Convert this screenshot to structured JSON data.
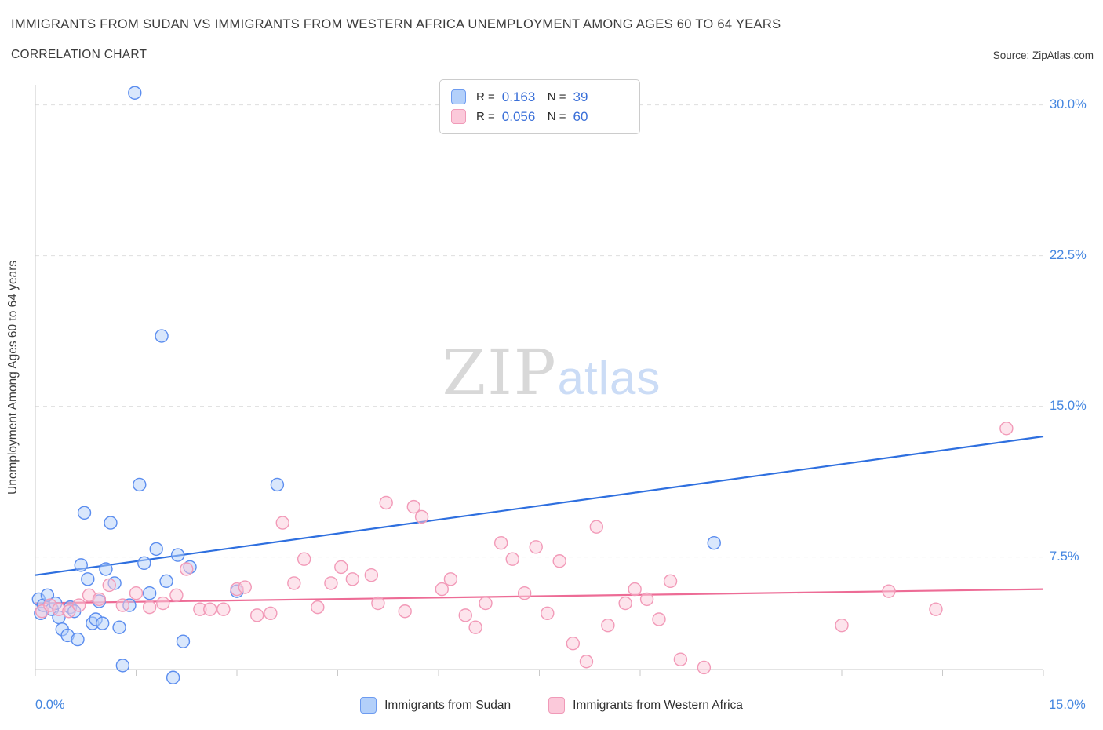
{
  "header": {
    "title": "IMMIGRANTS FROM SUDAN VS IMMIGRANTS FROM WESTERN AFRICA UNEMPLOYMENT AMONG AGES 60 TO 64 YEARS",
    "subtitle": "CORRELATION CHART",
    "source": "Source: ZipAtlas.com"
  },
  "legend_box": {
    "r_label": "R =",
    "n_label": "N ="
  },
  "watermark": {
    "zip": "ZIP",
    "atlas": "atlas"
  },
  "chart_data": {
    "type": "scatter",
    "title": "IMMIGRANTS FROM SUDAN VS IMMIGRANTS FROM WESTERN AFRICA UNEMPLOYMENT AMONG AGES 60 TO 64 YEARS",
    "subtitle": "CORRELATION CHART",
    "ylabel": "Unemployment Among Ages 60 to 64 years",
    "xlabel": "",
    "xlim": [
      0,
      15
    ],
    "ylim": [
      1.9,
      31.0
    ],
    "grid": "horizontal-dashed",
    "legend_position": "bottom-center",
    "x_ticks": [
      {
        "value": 0,
        "label": "0.0%"
      },
      {
        "value": 15,
        "label": "15.0%"
      }
    ],
    "y_ticks": [
      {
        "value": 7.5,
        "label": "7.5%"
      },
      {
        "value": 15,
        "label": "15.0%"
      },
      {
        "value": 22.5,
        "label": "22.5%"
      },
      {
        "value": 30,
        "label": "30.0%"
      }
    ],
    "series": [
      {
        "name": "Immigrants from Sudan",
        "R": "0.163",
        "N": "39",
        "color": "#5b8def",
        "line_color": "#2e6fdf",
        "fill": "#b3d0fa",
        "trend": {
          "x1": 0,
          "y1": 6.6,
          "x2": 15,
          "y2": 13.5
        },
        "points": [
          [
            0.05,
            5.4
          ],
          [
            0.08,
            4.7
          ],
          [
            0.12,
            5.1
          ],
          [
            0.18,
            5.6
          ],
          [
            0.25,
            4.9
          ],
          [
            0.3,
            5.2
          ],
          [
            0.35,
            4.5
          ],
          [
            0.4,
            3.9
          ],
          [
            0.48,
            3.6
          ],
          [
            0.52,
            5.0
          ],
          [
            0.58,
            4.8
          ],
          [
            0.63,
            3.4
          ],
          [
            0.68,
            7.1
          ],
          [
            0.73,
            9.7
          ],
          [
            0.78,
            6.4
          ],
          [
            0.85,
            4.2
          ],
          [
            0.9,
            4.4
          ],
          [
            0.95,
            5.3
          ],
          [
            1.0,
            4.2
          ],
          [
            1.05,
            6.9
          ],
          [
            1.12,
            9.2
          ],
          [
            1.18,
            6.2
          ],
          [
            1.25,
            4.0
          ],
          [
            1.3,
            2.1
          ],
          [
            1.4,
            5.1
          ],
          [
            1.48,
            30.6
          ],
          [
            1.55,
            11.1
          ],
          [
            1.62,
            7.2
          ],
          [
            1.7,
            5.7
          ],
          [
            1.8,
            7.9
          ],
          [
            1.88,
            18.5
          ],
          [
            1.95,
            6.3
          ],
          [
            2.05,
            1.5
          ],
          [
            2.12,
            7.6
          ],
          [
            2.2,
            3.3
          ],
          [
            2.3,
            7.0
          ],
          [
            3.0,
            5.8
          ],
          [
            3.6,
            11.1
          ],
          [
            10.1,
            8.2
          ]
        ]
      },
      {
        "name": "Immigrants from Western Africa",
        "R": "0.056",
        "N": "60",
        "color": "#f29ab8",
        "line_color": "#ed6c96",
        "fill": "#fbc9da",
        "trend": {
          "x1": 0,
          "y1": 5.2,
          "x2": 15,
          "y2": 5.9
        },
        "points": [
          [
            0.1,
            4.8
          ],
          [
            0.22,
            5.1
          ],
          [
            0.35,
            4.9
          ],
          [
            0.5,
            4.8
          ],
          [
            0.65,
            5.1
          ],
          [
            0.8,
            5.6
          ],
          [
            0.95,
            5.4
          ],
          [
            1.1,
            6.1
          ],
          [
            1.3,
            5.1
          ],
          [
            1.5,
            5.7
          ],
          [
            1.7,
            5.0
          ],
          [
            1.9,
            5.2
          ],
          [
            2.1,
            5.6
          ],
          [
            2.25,
            6.9
          ],
          [
            2.45,
            4.9
          ],
          [
            2.6,
            4.9
          ],
          [
            2.8,
            4.9
          ],
          [
            3.0,
            5.9
          ],
          [
            3.12,
            6.0
          ],
          [
            3.3,
            4.6
          ],
          [
            3.5,
            4.7
          ],
          [
            3.68,
            9.2
          ],
          [
            3.85,
            6.2
          ],
          [
            4.0,
            7.4
          ],
          [
            4.2,
            5.0
          ],
          [
            4.4,
            6.2
          ],
          [
            4.55,
            7.0
          ],
          [
            4.72,
            6.4
          ],
          [
            5.0,
            6.6
          ],
          [
            5.1,
            5.2
          ],
          [
            5.22,
            10.2
          ],
          [
            5.5,
            4.8
          ],
          [
            5.63,
            10.0
          ],
          [
            5.75,
            9.5
          ],
          [
            6.05,
            5.9
          ],
          [
            6.18,
            6.4
          ],
          [
            6.4,
            4.6
          ],
          [
            6.55,
            4.0
          ],
          [
            6.7,
            5.2
          ],
          [
            6.93,
            8.2
          ],
          [
            7.1,
            7.4
          ],
          [
            7.28,
            5.7
          ],
          [
            7.45,
            8.0
          ],
          [
            7.62,
            4.7
          ],
          [
            7.8,
            7.3
          ],
          [
            8.0,
            3.2
          ],
          [
            8.2,
            2.3
          ],
          [
            8.35,
            9.0
          ],
          [
            8.52,
            4.1
          ],
          [
            8.78,
            5.2
          ],
          [
            8.92,
            5.9
          ],
          [
            9.1,
            5.4
          ],
          [
            9.28,
            4.4
          ],
          [
            9.45,
            6.3
          ],
          [
            9.6,
            2.4
          ],
          [
            9.95,
            2.0
          ],
          [
            12.0,
            4.1
          ],
          [
            12.7,
            5.8
          ],
          [
            13.4,
            4.9
          ],
          [
            14.45,
            13.9
          ]
        ]
      }
    ]
  }
}
